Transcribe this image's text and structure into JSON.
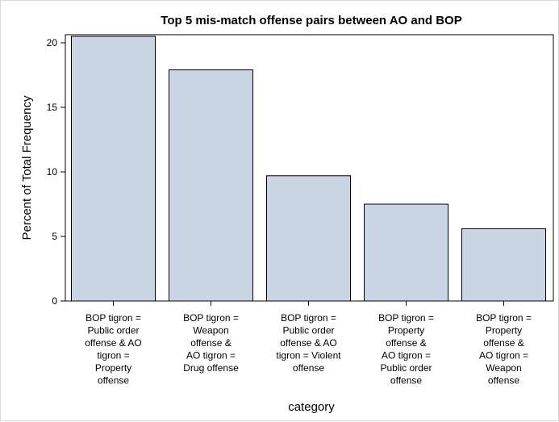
{
  "chart_data": {
    "type": "bar",
    "title": "Top 5 mis-match offense pairs between AO and BOP",
    "xlabel": "category",
    "ylabel": "Percent of Total Frequency",
    "ylim": [
      0,
      21
    ],
    "yticks": [
      0,
      5,
      10,
      15,
      20
    ],
    "grid": false,
    "legend": "none",
    "bar_color": "#c9d5e5",
    "bar_outline": "#000000",
    "categories": [
      "BOP tigron = Public order offense & AO tigron = Property offense",
      "BOP tigron = Weapon offense & AO tigron = Drug offense",
      "BOP tigron = Public order offense & AO tigron = Violent offense",
      "BOP tigron = Property offense & AO tigron = Public order offense",
      "BOP tigron = Property offense & AO tigron = Weapon offense"
    ],
    "category_lines": [
      [
        "BOP tigron =",
        "Public order",
        "offense & AO",
        "tigron =",
        "Property",
        "offense"
      ],
      [
        "BOP tigron =",
        "Weapon",
        "offense      &",
        "AO tigron =",
        "Drug offense"
      ],
      [
        "BOP tigron =",
        "Public order",
        "offense & AO",
        "tigron = Violent",
        "offense"
      ],
      [
        "BOP tigron =",
        "Property",
        "offense      &",
        "AO tigron =",
        "Public order",
        "offense"
      ],
      [
        "BOP tigron =",
        "Property",
        "offense      &",
        "AO tigron =",
        "Weapon",
        "offense"
      ]
    ],
    "values": [
      20.5,
      17.9,
      9.7,
      7.5,
      5.6
    ]
  }
}
